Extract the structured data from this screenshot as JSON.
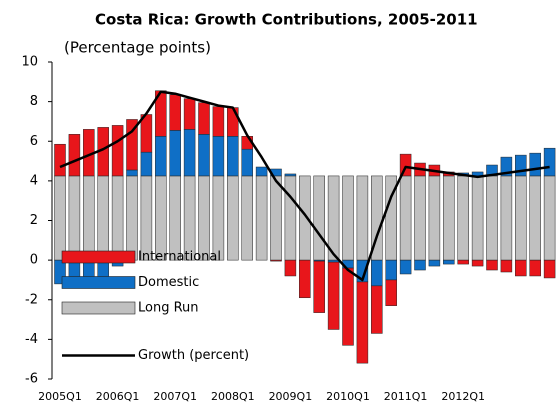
{
  "chart_data": {
    "type": "bar",
    "stacked": true,
    "title": "Costa Rica: Growth Contributions, 2005-2011",
    "subtitle": "(Percentage points)",
    "categories": [
      "2005Q1",
      null,
      null,
      null,
      "2006Q1",
      null,
      null,
      null,
      "2007Q1",
      null,
      null,
      null,
      "2008Q1",
      null,
      null,
      null,
      "2009Q1",
      null,
      null,
      null,
      "2010Q1",
      null,
      null,
      null,
      "2011Q1",
      null,
      null,
      null,
      "2012Q1",
      null,
      null,
      null,
      null,
      null,
      null
    ],
    "ylim": [
      -6,
      10
    ],
    "yticks": [
      -6,
      -4,
      -2,
      0,
      2,
      4,
      6,
      8,
      10
    ],
    "legend": "lower left",
    "series": [
      {
        "name": "International",
        "color": "#e8161b",
        "values": [
          1.6,
          2.1,
          2.35,
          2.45,
          2.55,
          2.55,
          1.9,
          2.3,
          1.8,
          1.55,
          1.6,
          1.5,
          1.45,
          0.65,
          0,
          -0.05,
          -0.8,
          -1.9,
          -2.6,
          -3.4,
          -3.9,
          -4.1,
          -2.4,
          -1.3,
          1.1,
          0.65,
          0.55,
          0.2,
          -0.2,
          -0.3,
          -0.5,
          -0.6,
          -0.8,
          -0.8,
          -0.9
        ]
      },
      {
        "name": "Domestic",
        "color": "#0f6fc6",
        "values": [
          -1.2,
          -1.3,
          -1.3,
          -1.0,
          -0.3,
          0.3,
          1.2,
          2.0,
          2.3,
          2.35,
          2.1,
          2.0,
          2.0,
          1.35,
          0.45,
          0.35,
          0.1,
          0,
          -0.05,
          -0.1,
          -0.4,
          -1.1,
          -1.3,
          -1.0,
          -0.7,
          -0.5,
          -0.3,
          -0.2,
          0.15,
          0.2,
          0.55,
          0.95,
          1.05,
          1.15,
          1.4
        ]
      },
      {
        "name": "Long Run",
        "color": "#c0c0c0",
        "values": [
          4.25,
          4.25,
          4.25,
          4.25,
          4.25,
          4.25,
          4.25,
          4.25,
          4.25,
          4.25,
          4.25,
          4.25,
          4.25,
          4.25,
          4.25,
          4.25,
          4.25,
          4.25,
          4.25,
          4.25,
          4.25,
          4.25,
          4.25,
          4.25,
          4.25,
          4.25,
          4.25,
          4.25,
          4.25,
          4.25,
          4.25,
          4.25,
          4.25,
          4.25,
          4.25
        ]
      },
      {
        "name": "Growth (percent)",
        "color": "#000000",
        "type": "line",
        "values": [
          4.7,
          5.0,
          5.3,
          5.6,
          6.0,
          6.5,
          7.4,
          8.5,
          8.4,
          8.2,
          8.0,
          7.8,
          7.7,
          6.3,
          5.2,
          4.0,
          3.2,
          2.3,
          1.3,
          0.3,
          -0.5,
          -1.0,
          1.2,
          3.2,
          4.7,
          4.6,
          4.5,
          4.4,
          4.3,
          4.2,
          4.3,
          4.4,
          4.5,
          4.6,
          4.7
        ]
      }
    ]
  }
}
